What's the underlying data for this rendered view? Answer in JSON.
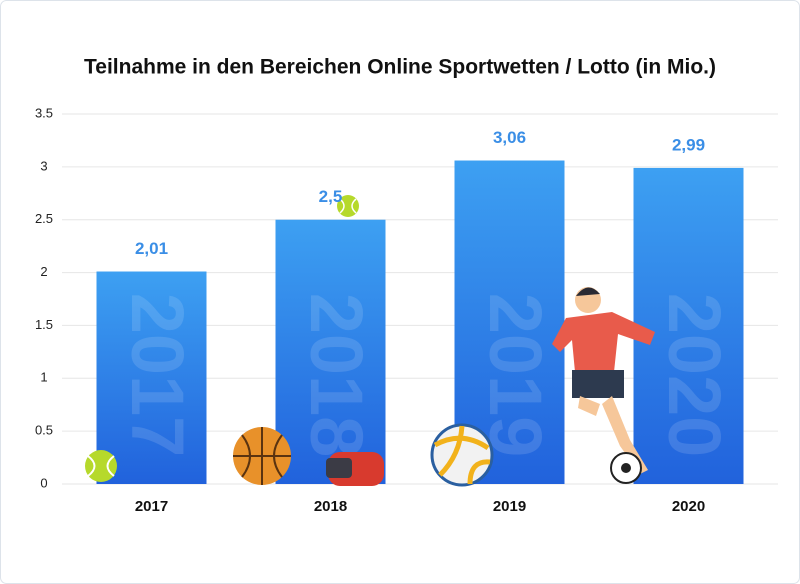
{
  "chart_data": {
    "type": "bar",
    "title": "Teilnahme in den Bereichen Online Sportwetten / Lotto (in Mio.)",
    "categories": [
      "2017",
      "2018",
      "2019",
      "2020"
    ],
    "values": [
      2.01,
      2.5,
      3.06,
      2.99
    ],
    "value_labels": [
      "2,01",
      "2,5",
      "3,06",
      "2,99"
    ],
    "color": "#2f86ec",
    "ylim": [
      0,
      3.5
    ],
    "yticks": [
      0,
      0.5,
      1,
      1.5,
      2,
      2.5,
      3,
      3.5
    ],
    "grid": true
  }
}
